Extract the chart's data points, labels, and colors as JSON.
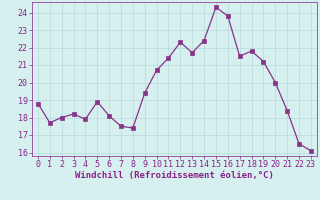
{
  "x": [
    0,
    1,
    2,
    3,
    4,
    5,
    6,
    7,
    8,
    9,
    10,
    11,
    12,
    13,
    14,
    15,
    16,
    17,
    18,
    19,
    20,
    21,
    22,
    23
  ],
  "y": [
    18.8,
    17.7,
    18.0,
    18.2,
    17.9,
    18.9,
    18.1,
    17.5,
    17.4,
    19.4,
    20.7,
    21.4,
    22.3,
    21.7,
    22.4,
    24.3,
    23.8,
    21.5,
    21.8,
    21.2,
    20.0,
    18.4,
    16.5,
    16.1
  ],
  "line_color": "#883388",
  "marker": "s",
  "markersize": 2.5,
  "linewidth": 0.9,
  "xlabel": "Windchill (Refroidissement éolien,°C)",
  "xlim": [
    -0.5,
    23.5
  ],
  "ylim": [
    15.8,
    24.6
  ],
  "yticks": [
    16,
    17,
    18,
    19,
    20,
    21,
    22,
    23,
    24
  ],
  "xticks": [
    0,
    1,
    2,
    3,
    4,
    5,
    6,
    7,
    8,
    9,
    10,
    11,
    12,
    13,
    14,
    15,
    16,
    17,
    18,
    19,
    20,
    21,
    22,
    23
  ],
  "background_color": "#d6f0f0",
  "grid_color": "#bbdddd",
  "tick_color": "#882288",
  "label_color": "#882288",
  "xlabel_fontsize": 6.5,
  "tick_fontsize": 6.0
}
